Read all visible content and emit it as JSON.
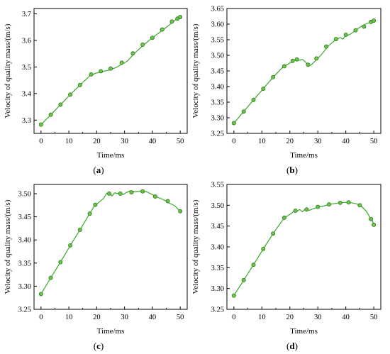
{
  "style": {
    "line_color": "#3aa82a",
    "marker_fill": "#6cc24a",
    "marker_stroke": "#2e7d1e",
    "axis_color": "#000000"
  },
  "chart_data": [
    {
      "type": "line",
      "panel": "a",
      "caption_open": "(",
      "caption_letter": "a",
      "caption_close": ")",
      "xlabel": "Time/ms",
      "ylabel": "Velocity of quality mass/(m/s)",
      "xlim": [
        -2.5,
        52.5
      ],
      "ylim": [
        3.25,
        3.72
      ],
      "xticks": [
        0,
        10,
        20,
        30,
        40,
        50
      ],
      "yticks": [
        3.3,
        3.4,
        3.5,
        3.6,
        3.7
      ],
      "ytick_decimals": 1,
      "line": [
        [
          0,
          3.283
        ],
        [
          3.5,
          3.32
        ],
        [
          7,
          3.358
        ],
        [
          10.5,
          3.396
        ],
        [
          14,
          3.432
        ],
        [
          17.5,
          3.466
        ],
        [
          19.5,
          3.476
        ],
        [
          21,
          3.48
        ],
        [
          22.5,
          3.484
        ],
        [
          24,
          3.487
        ],
        [
          25.5,
          3.492
        ],
        [
          27,
          3.498
        ],
        [
          29,
          3.51
        ],
        [
          31,
          3.522
        ],
        [
          33.5,
          3.551
        ],
        [
          37,
          3.584
        ],
        [
          40,
          3.61
        ],
        [
          44,
          3.641
        ],
        [
          47.5,
          3.67
        ],
        [
          49,
          3.684
        ],
        [
          50,
          3.69
        ]
      ],
      "markers": [
        [
          0,
          3.283
        ],
        [
          3.5,
          3.32
        ],
        [
          7,
          3.358
        ],
        [
          10.5,
          3.396
        ],
        [
          14,
          3.432
        ],
        [
          18,
          3.472
        ],
        [
          21.5,
          3.484
        ],
        [
          25,
          3.494
        ],
        [
          29,
          3.516
        ],
        [
          33,
          3.551
        ],
        [
          36.5,
          3.584
        ],
        [
          40,
          3.61
        ],
        [
          43.5,
          3.641
        ],
        [
          47,
          3.671
        ],
        [
          49,
          3.682
        ],
        [
          50,
          3.688
        ]
      ]
    },
    {
      "type": "line",
      "panel": "b",
      "caption_open": "(",
      "caption_letter": "b",
      "caption_close": ")",
      "xlabel": "Time/ms",
      "ylabel": "Velocity of quality mass/(m/s)",
      "xlim": [
        -2.5,
        52.5
      ],
      "ylim": [
        3.25,
        3.65
      ],
      "xticks": [
        0,
        10,
        20,
        30,
        40,
        50
      ],
      "yticks": [
        3.25,
        3.3,
        3.35,
        3.4,
        3.45,
        3.5,
        3.55,
        3.6,
        3.65
      ],
      "ytick_decimals": 2,
      "line": [
        [
          0,
          3.283
        ],
        [
          3.5,
          3.32
        ],
        [
          7,
          3.357
        ],
        [
          10.5,
          3.393
        ],
        [
          14,
          3.43
        ],
        [
          17.5,
          3.462
        ],
        [
          19,
          3.47
        ],
        [
          20.5,
          3.478
        ],
        [
          21.5,
          3.485
        ],
        [
          22.5,
          3.487
        ],
        [
          23.5,
          3.484
        ],
        [
          24.5,
          3.487
        ],
        [
          25.5,
          3.479
        ],
        [
          26.5,
          3.47
        ],
        [
          27.5,
          3.468
        ],
        [
          28.5,
          3.477
        ],
        [
          30,
          3.49
        ],
        [
          32,
          3.51
        ],
        [
          33.5,
          3.528
        ],
        [
          35,
          3.54
        ],
        [
          36.5,
          3.55
        ],
        [
          38,
          3.557
        ],
        [
          39,
          3.552
        ],
        [
          40,
          3.563
        ],
        [
          41,
          3.565
        ],
        [
          42,
          3.57
        ],
        [
          43.5,
          3.58
        ],
        [
          45,
          3.59
        ],
        [
          47,
          3.6
        ],
        [
          49,
          3.607
        ],
        [
          50,
          3.611
        ]
      ],
      "markers": [
        [
          0,
          3.283
        ],
        [
          3.5,
          3.32
        ],
        [
          7,
          3.357
        ],
        [
          10.5,
          3.393
        ],
        [
          14,
          3.43
        ],
        [
          18,
          3.465
        ],
        [
          21,
          3.482
        ],
        [
          22.5,
          3.487
        ],
        [
          26.5,
          3.47
        ],
        [
          29.5,
          3.49
        ],
        [
          33,
          3.528
        ],
        [
          36.5,
          3.552
        ],
        [
          40,
          3.566
        ],
        [
          43.5,
          3.58
        ],
        [
          46.5,
          3.592
        ],
        [
          49,
          3.607
        ],
        [
          50,
          3.611
        ]
      ]
    },
    {
      "type": "line",
      "panel": "c",
      "caption_open": "(",
      "caption_letter": "c",
      "caption_close": ")",
      "xlabel": "Time/ms",
      "ylabel": "Velocity of quality mass/(m/s)",
      "xlim": [
        -2.5,
        52.5
      ],
      "ylim": [
        3.25,
        3.52
      ],
      "xticks": [
        0,
        10,
        20,
        30,
        40,
        50
      ],
      "yticks": [
        3.25,
        3.3,
        3.35,
        3.4,
        3.45,
        3.5
      ],
      "ytick_decimals": 2,
      "line": [
        [
          0,
          3.283
        ],
        [
          3.5,
          3.318
        ],
        [
          7,
          3.352
        ],
        [
          10.5,
          3.388
        ],
        [
          14,
          3.422
        ],
        [
          17.5,
          3.457
        ],
        [
          19,
          3.472
        ],
        [
          20.5,
          3.48
        ],
        [
          21.5,
          3.485
        ],
        [
          22.5,
          3.49
        ],
        [
          23.5,
          3.5
        ],
        [
          24.5,
          3.504
        ],
        [
          25.5,
          3.495
        ],
        [
          26.5,
          3.502
        ],
        [
          27.5,
          3.5
        ],
        [
          28.5,
          3.504
        ],
        [
          29.5,
          3.498
        ],
        [
          30.5,
          3.502
        ],
        [
          32,
          3.506
        ],
        [
          34,
          3.504
        ],
        [
          36,
          3.506
        ],
        [
          38,
          3.504
        ],
        [
          40,
          3.498
        ],
        [
          42,
          3.492
        ],
        [
          44,
          3.487
        ],
        [
          46,
          3.48
        ],
        [
          48,
          3.474
        ],
        [
          49,
          3.468
        ],
        [
          50,
          3.46
        ]
      ],
      "markers": [
        [
          0,
          3.283
        ],
        [
          3.5,
          3.318
        ],
        [
          7,
          3.352
        ],
        [
          10.5,
          3.388
        ],
        [
          14,
          3.422
        ],
        [
          17.5,
          3.457
        ],
        [
          19.5,
          3.476
        ],
        [
          24.5,
          3.5
        ],
        [
          28.5,
          3.5
        ],
        [
          32.5,
          3.503
        ],
        [
          36.5,
          3.505
        ],
        [
          41,
          3.494
        ],
        [
          45.5,
          3.484
        ],
        [
          50,
          3.462
        ]
      ]
    },
    {
      "type": "line",
      "panel": "d",
      "caption_open": "(",
      "caption_letter": "d",
      "caption_close": ")",
      "xlabel": "Time/ms",
      "ylabel": "Velocity of quality mass/(m/s)",
      "xlim": [
        -2.5,
        52.5
      ],
      "ylim": [
        3.25,
        3.55
      ],
      "xticks": [
        0,
        10,
        20,
        30,
        40,
        50
      ],
      "yticks": [
        3.25,
        3.3,
        3.35,
        3.4,
        3.45,
        3.5,
        3.55
      ],
      "ytick_decimals": 2,
      "line": [
        [
          0,
          3.283
        ],
        [
          3.5,
          3.32
        ],
        [
          7,
          3.357
        ],
        [
          10.5,
          3.395
        ],
        [
          14,
          3.432
        ],
        [
          17.5,
          3.465
        ],
        [
          19,
          3.474
        ],
        [
          20.5,
          3.48
        ],
        [
          21.5,
          3.486
        ],
        [
          22.5,
          3.485
        ],
        [
          23.5,
          3.49
        ],
        [
          24.5,
          3.484
        ],
        [
          25.5,
          3.491
        ],
        [
          27,
          3.488
        ],
        [
          28.5,
          3.492
        ],
        [
          30,
          3.495
        ],
        [
          32,
          3.498
        ],
        [
          34,
          3.502
        ],
        [
          36,
          3.504
        ],
        [
          38,
          3.506
        ],
        [
          40,
          3.507
        ],
        [
          42,
          3.506
        ],
        [
          44,
          3.503
        ],
        [
          46,
          3.495
        ],
        [
          47.5,
          3.484
        ],
        [
          48.5,
          3.472
        ],
        [
          49.5,
          3.462
        ],
        [
          50,
          3.455
        ]
      ],
      "markers": [
        [
          0,
          3.283
        ],
        [
          3.5,
          3.32
        ],
        [
          7,
          3.357
        ],
        [
          10.5,
          3.395
        ],
        [
          14,
          3.432
        ],
        [
          18,
          3.47
        ],
        [
          22,
          3.487
        ],
        [
          26,
          3.49
        ],
        [
          30,
          3.496
        ],
        [
          34,
          3.502
        ],
        [
          38,
          3.506
        ],
        [
          41,
          3.507
        ],
        [
          45,
          3.5
        ],
        [
          49,
          3.467
        ],
        [
          50,
          3.453
        ]
      ]
    }
  ]
}
